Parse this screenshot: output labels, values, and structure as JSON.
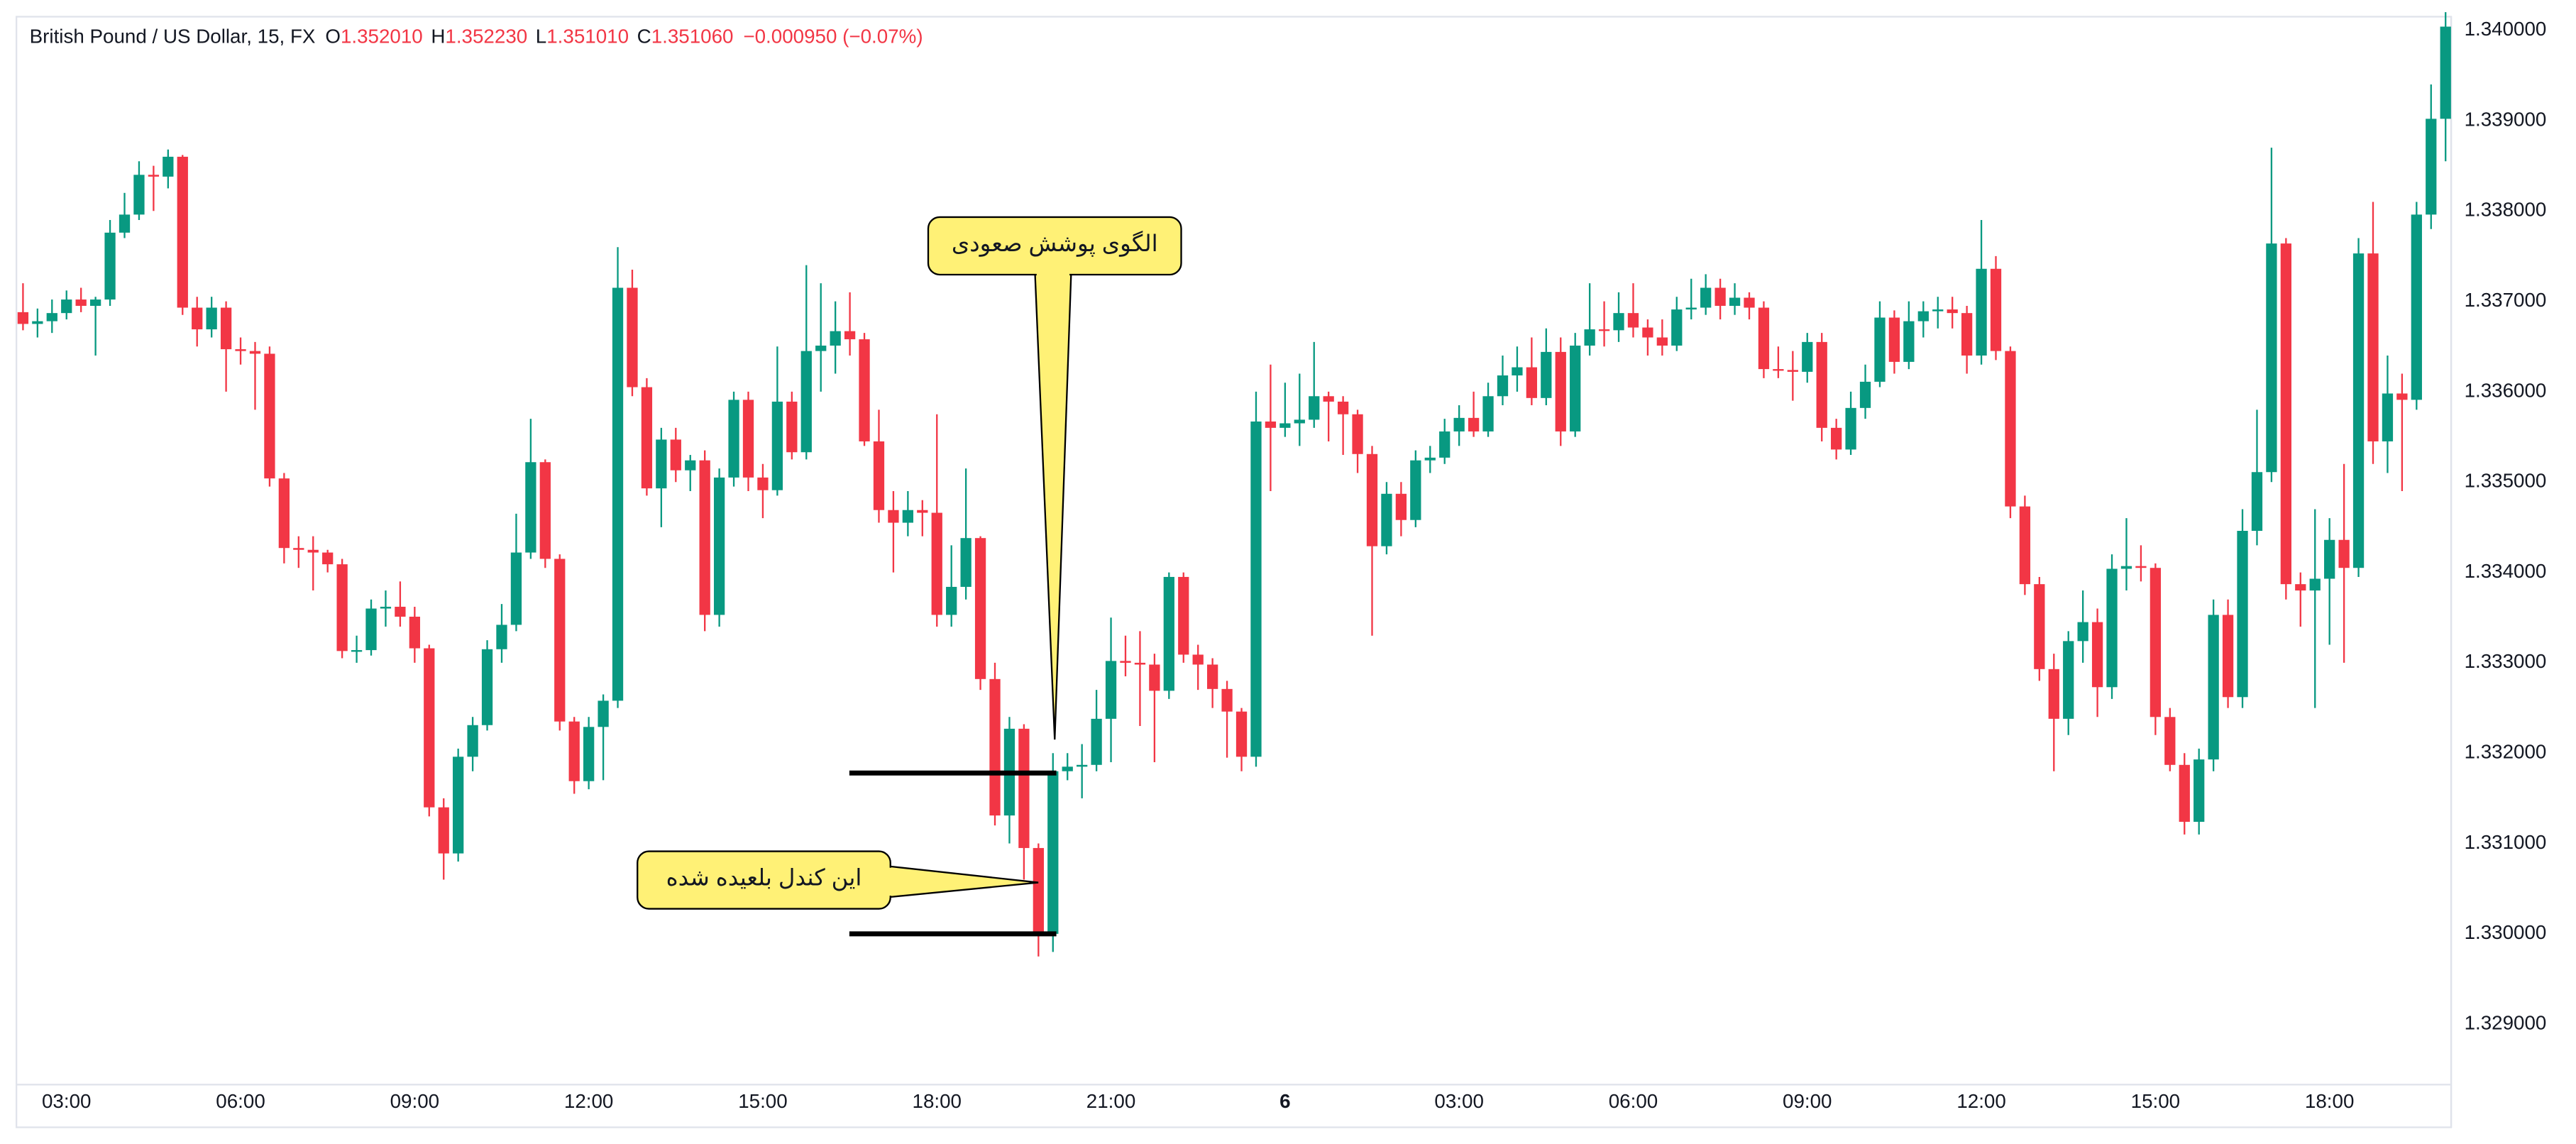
{
  "chart_data": {
    "type": "candlestick",
    "title": "British Pound / US Dollar, 15, FX",
    "header": [
      {
        "label": "O",
        "value": "1.352010"
      },
      {
        "label": "H",
        "value": "1.352230"
      },
      {
        "label": "L",
        "value": "1.351010"
      },
      {
        "label": "C",
        "value": "1.351060"
      }
    ],
    "change": "−0.000950 (−0.07%)",
    "up_color": "#089981",
    "down_color": "#f23645",
    "grid": false,
    "ylim": [
      1.32835,
      1.34015
    ],
    "yticks": [
      {
        "value": 1.34,
        "label": "1.340000"
      },
      {
        "value": 1.339,
        "label": "1.339000"
      },
      {
        "value": 1.338,
        "label": "1.338000"
      },
      {
        "value": 1.337,
        "label": "1.337000"
      },
      {
        "value": 1.336,
        "label": "1.336000"
      },
      {
        "value": 1.335,
        "label": "1.335000"
      },
      {
        "value": 1.334,
        "label": "1.334000"
      },
      {
        "value": 1.333,
        "label": "1.333000"
      },
      {
        "value": 1.332,
        "label": "1.332000"
      },
      {
        "value": 1.331,
        "label": "1.331000"
      },
      {
        "value": 1.33,
        "label": "1.330000"
      },
      {
        "value": 1.329,
        "label": "1.329000"
      }
    ],
    "xticks": [
      "03:00",
      "06:00",
      "09:00",
      "12:00",
      "15:00",
      "18:00",
      "21:00",
      "6",
      "03:00",
      "06:00",
      "09:00",
      "12:00",
      "15:00",
      "18:00"
    ],
    "hlines": [
      1.33178,
      1.33
    ],
    "annotations": [
      "الگوی پوشش صعودی",
      "این کندل بلعیده شده"
    ],
    "ohlc": [
      [
        1.33688,
        1.3372,
        1.33668,
        1.33675
      ],
      [
        1.33675,
        1.33692,
        1.3366,
        1.33678
      ],
      [
        1.33678,
        1.33702,
        1.33665,
        1.33687
      ],
      [
        1.33687,
        1.33712,
        1.3368,
        1.33702
      ],
      [
        1.33702,
        1.33715,
        1.33688,
        1.33695
      ],
      [
        1.33695,
        1.33705,
        1.3364,
        1.33702
      ],
      [
        1.33702,
        1.3379,
        1.33695,
        1.33776
      ],
      [
        1.33776,
        1.3382,
        1.3377,
        1.33796
      ],
      [
        1.33796,
        1.33855,
        1.3379,
        1.3384
      ],
      [
        1.3384,
        1.3385,
        1.338,
        1.33838
      ],
      [
        1.33838,
        1.33868,
        1.33825,
        1.3386
      ],
      [
        1.3386,
        1.33862,
        1.33685,
        1.33693
      ],
      [
        1.33693,
        1.33705,
        1.3365,
        1.33669
      ],
      [
        1.33669,
        1.33705,
        1.3366,
        1.33693
      ],
      [
        1.33693,
        1.337,
        1.336,
        1.33647
      ],
      [
        1.33647,
        1.3366,
        1.3363,
        1.33645
      ],
      [
        1.33645,
        1.33655,
        1.3358,
        1.33642
      ],
      [
        1.33642,
        1.3365,
        1.33495,
        1.33504
      ],
      [
        1.33504,
        1.3351,
        1.3341,
        1.33427
      ],
      [
        1.33427,
        1.3344,
        1.33405,
        1.33425
      ],
      [
        1.33425,
        1.3344,
        1.3338,
        1.33422
      ],
      [
        1.33422,
        1.33425,
        1.334,
        1.33409
      ],
      [
        1.33409,
        1.33415,
        1.33305,
        1.33313
      ],
      [
        1.33313,
        1.3333,
        1.333,
        1.33314
      ],
      [
        1.33314,
        1.3337,
        1.33308,
        1.3336
      ],
      [
        1.3336,
        1.3338,
        1.3334,
        1.33362
      ],
      [
        1.33362,
        1.3339,
        1.3334,
        1.33351
      ],
      [
        1.33351,
        1.33362,
        1.333,
        1.33316
      ],
      [
        1.33316,
        1.3332,
        1.3313,
        1.3314
      ],
      [
        1.3314,
        1.3315,
        1.3306,
        1.33089
      ],
      [
        1.33089,
        1.33205,
        1.3308,
        1.33196
      ],
      [
        1.33196,
        1.3324,
        1.3318,
        1.33231
      ],
      [
        1.33231,
        1.33325,
        1.33225,
        1.33315
      ],
      [
        1.33315,
        1.33365,
        1.333,
        1.33342
      ],
      [
        1.33342,
        1.33465,
        1.33335,
        1.33422
      ],
      [
        1.33422,
        1.3357,
        1.33415,
        1.33522
      ],
      [
        1.33522,
        1.33525,
        1.33405,
        1.33415
      ],
      [
        1.33415,
        1.3342,
        1.33225,
        1.33235
      ],
      [
        1.33235,
        1.3324,
        1.33155,
        1.33169
      ],
      [
        1.33169,
        1.3324,
        1.3316,
        1.33229
      ],
      [
        1.33229,
        1.33265,
        1.3317,
        1.33258
      ],
      [
        1.33258,
        1.3376,
        1.3325,
        1.33715
      ],
      [
        1.33715,
        1.33735,
        1.33595,
        1.33605
      ],
      [
        1.33605,
        1.33615,
        1.33485,
        1.33493
      ],
      [
        1.33493,
        1.3356,
        1.3345,
        1.33547
      ],
      [
        1.33547,
        1.3356,
        1.335,
        1.33513
      ],
      [
        1.33513,
        1.3353,
        1.3349,
        1.33524
      ],
      [
        1.33524,
        1.33535,
        1.33335,
        1.33353
      ],
      [
        1.33353,
        1.33515,
        1.3334,
        1.33505
      ],
      [
        1.33505,
        1.336,
        1.33495,
        1.33591
      ],
      [
        1.33591,
        1.336,
        1.3349,
        1.33505
      ],
      [
        1.33505,
        1.3352,
        1.3346,
        1.33491
      ],
      [
        1.33491,
        1.3365,
        1.33485,
        1.33589
      ],
      [
        1.33589,
        1.336,
        1.33525,
        1.33533
      ],
      [
        1.33533,
        1.3374,
        1.33525,
        1.33645
      ],
      [
        1.33645,
        1.3372,
        1.336,
        1.33651
      ],
      [
        1.33651,
        1.337,
        1.3362,
        1.33667
      ],
      [
        1.33667,
        1.3371,
        1.3364,
        1.33658
      ],
      [
        1.33658,
        1.33665,
        1.3354,
        1.33545
      ],
      [
        1.33545,
        1.3358,
        1.33455,
        1.33469
      ],
      [
        1.33469,
        1.3349,
        1.334,
        1.33455
      ],
      [
        1.33455,
        1.3349,
        1.3344,
        1.33469
      ],
      [
        1.33469,
        1.3348,
        1.3344,
        1.33466
      ],
      [
        1.33466,
        1.33575,
        1.3334,
        1.33353
      ],
      [
        1.33353,
        1.3343,
        1.3334,
        1.33384
      ],
      [
        1.33384,
        1.33515,
        1.3337,
        1.33438
      ],
      [
        1.33438,
        1.3344,
        1.3327,
        1.33282
      ],
      [
        1.33282,
        1.333,
        1.3312,
        1.33131
      ],
      [
        1.33131,
        1.3324,
        1.331,
        1.33227
      ],
      [
        1.33227,
        1.33232,
        1.3306,
        1.33095
      ],
      [
        1.33095,
        1.331,
        1.32975,
        1.33
      ],
      [
        1.33,
        1.332,
        1.3298,
        1.3318
      ],
      [
        1.3318,
        1.332,
        1.3317,
        1.33185
      ],
      [
        1.33185,
        1.3321,
        1.3315,
        1.33187
      ],
      [
        1.33187,
        1.3327,
        1.3318,
        1.33238
      ],
      [
        1.33238,
        1.3335,
        1.3319,
        1.33302
      ],
      [
        1.33302,
        1.3333,
        1.33285,
        1.333
      ],
      [
        1.333,
        1.33335,
        1.3323,
        1.33298
      ],
      [
        1.33298,
        1.3331,
        1.3319,
        1.33269
      ],
      [
        1.33269,
        1.334,
        1.3326,
        1.33395
      ],
      [
        1.33395,
        1.334,
        1.333,
        1.33309
      ],
      [
        1.33309,
        1.3332,
        1.3327,
        1.33298
      ],
      [
        1.33298,
        1.33305,
        1.3325,
        1.33271
      ],
      [
        1.33271,
        1.3328,
        1.33195,
        1.33246
      ],
      [
        1.33246,
        1.3325,
        1.3318,
        1.33196
      ],
      [
        1.33196,
        1.336,
        1.33185,
        1.33567
      ],
      [
        1.33567,
        1.3363,
        1.3349,
        1.3356
      ],
      [
        1.3356,
        1.3361,
        1.3355,
        1.33565
      ],
      [
        1.33565,
        1.3362,
        1.3354,
        1.33569
      ],
      [
        1.33569,
        1.33655,
        1.3356,
        1.33595
      ],
      [
        1.33595,
        1.336,
        1.33545,
        1.33589
      ],
      [
        1.33589,
        1.33595,
        1.3353,
        1.33575
      ],
      [
        1.33575,
        1.3358,
        1.3351,
        1.33531
      ],
      [
        1.33531,
        1.3354,
        1.3333,
        1.33429
      ],
      [
        1.33429,
        1.335,
        1.3342,
        1.33487
      ],
      [
        1.33487,
        1.335,
        1.3344,
        1.33458
      ],
      [
        1.33458,
        1.33535,
        1.3345,
        1.33524
      ],
      [
        1.33524,
        1.3354,
        1.3351,
        1.33527
      ],
      [
        1.33527,
        1.3357,
        1.3352,
        1.33556
      ],
      [
        1.33556,
        1.33585,
        1.3354,
        1.33571
      ],
      [
        1.33571,
        1.336,
        1.3355,
        1.33556
      ],
      [
        1.33556,
        1.3361,
        1.3355,
        1.33595
      ],
      [
        1.33595,
        1.3364,
        1.33585,
        1.33618
      ],
      [
        1.33618,
        1.3365,
        1.336,
        1.33627
      ],
      [
        1.33627,
        1.3366,
        1.33585,
        1.33593
      ],
      [
        1.33593,
        1.3367,
        1.33585,
        1.33644
      ],
      [
        1.33644,
        1.3366,
        1.3354,
        1.33556
      ],
      [
        1.33556,
        1.33665,
        1.3355,
        1.33651
      ],
      [
        1.33651,
        1.3372,
        1.3364,
        1.33669
      ],
      [
        1.33669,
        1.337,
        1.3365,
        1.33668
      ],
      [
        1.33668,
        1.3371,
        1.33655,
        1.33687
      ],
      [
        1.33687,
        1.3372,
        1.3366,
        1.33671
      ],
      [
        1.33671,
        1.3368,
        1.3364,
        1.3366
      ],
      [
        1.3366,
        1.3368,
        1.3364,
        1.33651
      ],
      [
        1.33651,
        1.33705,
        1.33645,
        1.33691
      ],
      [
        1.33691,
        1.33725,
        1.3368,
        1.33693
      ],
      [
        1.33693,
        1.3373,
        1.33685,
        1.33715
      ],
      [
        1.33715,
        1.33725,
        1.3368,
        1.33695
      ],
      [
        1.33695,
        1.3372,
        1.33685,
        1.33704
      ],
      [
        1.33704,
        1.3371,
        1.3368,
        1.33693
      ],
      [
        1.33693,
        1.337,
        1.33615,
        1.33625
      ],
      [
        1.33625,
        1.3365,
        1.33615,
        1.33624
      ],
      [
        1.33624,
        1.33645,
        1.3359,
        1.33622
      ],
      [
        1.33622,
        1.33665,
        1.3361,
        1.33655
      ],
      [
        1.33655,
        1.33665,
        1.33545,
        1.3356
      ],
      [
        1.3356,
        1.3357,
        1.33525,
        1.33536
      ],
      [
        1.33536,
        1.336,
        1.3353,
        1.33582
      ],
      [
        1.33582,
        1.3363,
        1.3357,
        1.33611
      ],
      [
        1.33611,
        1.337,
        1.33605,
        1.33682
      ],
      [
        1.33682,
        1.3369,
        1.3362,
        1.33633
      ],
      [
        1.33633,
        1.337,
        1.33625,
        1.33678
      ],
      [
        1.33678,
        1.337,
        1.3366,
        1.33689
      ],
      [
        1.33689,
        1.33705,
        1.3367,
        1.33691
      ],
      [
        1.33691,
        1.33705,
        1.3367,
        1.33687
      ],
      [
        1.33687,
        1.33695,
        1.3362,
        1.3364
      ],
      [
        1.3364,
        1.3379,
        1.3363,
        1.33736
      ],
      [
        1.33736,
        1.3375,
        1.33635,
        1.33645
      ],
      [
        1.33645,
        1.3365,
        1.3346,
        1.33473
      ],
      [
        1.33473,
        1.33485,
        1.33375,
        1.33387
      ],
      [
        1.33387,
        1.33395,
        1.3328,
        1.33293
      ],
      [
        1.33293,
        1.3331,
        1.3318,
        1.33238
      ],
      [
        1.33238,
        1.33335,
        1.3322,
        1.33324
      ],
      [
        1.33324,
        1.3338,
        1.333,
        1.33345
      ],
      [
        1.33345,
        1.3336,
        1.3324,
        1.33273
      ],
      [
        1.33273,
        1.3342,
        1.3326,
        1.33404
      ],
      [
        1.33404,
        1.3346,
        1.3338,
        1.33407
      ],
      [
        1.33407,
        1.3343,
        1.3339,
        1.33405
      ],
      [
        1.33405,
        1.3341,
        1.3322,
        1.3324
      ],
      [
        1.3324,
        1.3325,
        1.3318,
        1.33187
      ],
      [
        1.33187,
        1.332,
        1.3311,
        1.33124
      ],
      [
        1.33124,
        1.33205,
        1.3311,
        1.33193
      ],
      [
        1.33193,
        1.3337,
        1.3318,
        1.33353
      ],
      [
        1.33353,
        1.3337,
        1.3325,
        1.33262
      ],
      [
        1.33262,
        1.3347,
        1.3325,
        1.33446
      ],
      [
        1.33446,
        1.3358,
        1.3343,
        1.33511
      ],
      [
        1.33511,
        1.3387,
        1.335,
        1.33764
      ],
      [
        1.33764,
        1.3377,
        1.3337,
        1.33387
      ],
      [
        1.33387,
        1.334,
        1.3334,
        1.3338
      ],
      [
        1.3338,
        1.3347,
        1.3325,
        1.33393
      ],
      [
        1.33393,
        1.3346,
        1.3332,
        1.33436
      ],
      [
        1.33436,
        1.3352,
        1.333,
        1.33405
      ],
      [
        1.33405,
        1.3377,
        1.33395,
        1.33753
      ],
      [
        1.33753,
        1.3381,
        1.3352,
        1.33545
      ],
      [
        1.33545,
        1.3364,
        1.3351,
        1.33598
      ],
      [
        1.33598,
        1.3362,
        1.3349,
        1.33591
      ],
      [
        1.33591,
        1.3381,
        1.3358,
        1.33796
      ],
      [
        1.33796,
        1.3394,
        1.3378,
        1.33902
      ],
      [
        1.33902,
        1.3402,
        1.33855,
        1.34004
      ]
    ]
  }
}
